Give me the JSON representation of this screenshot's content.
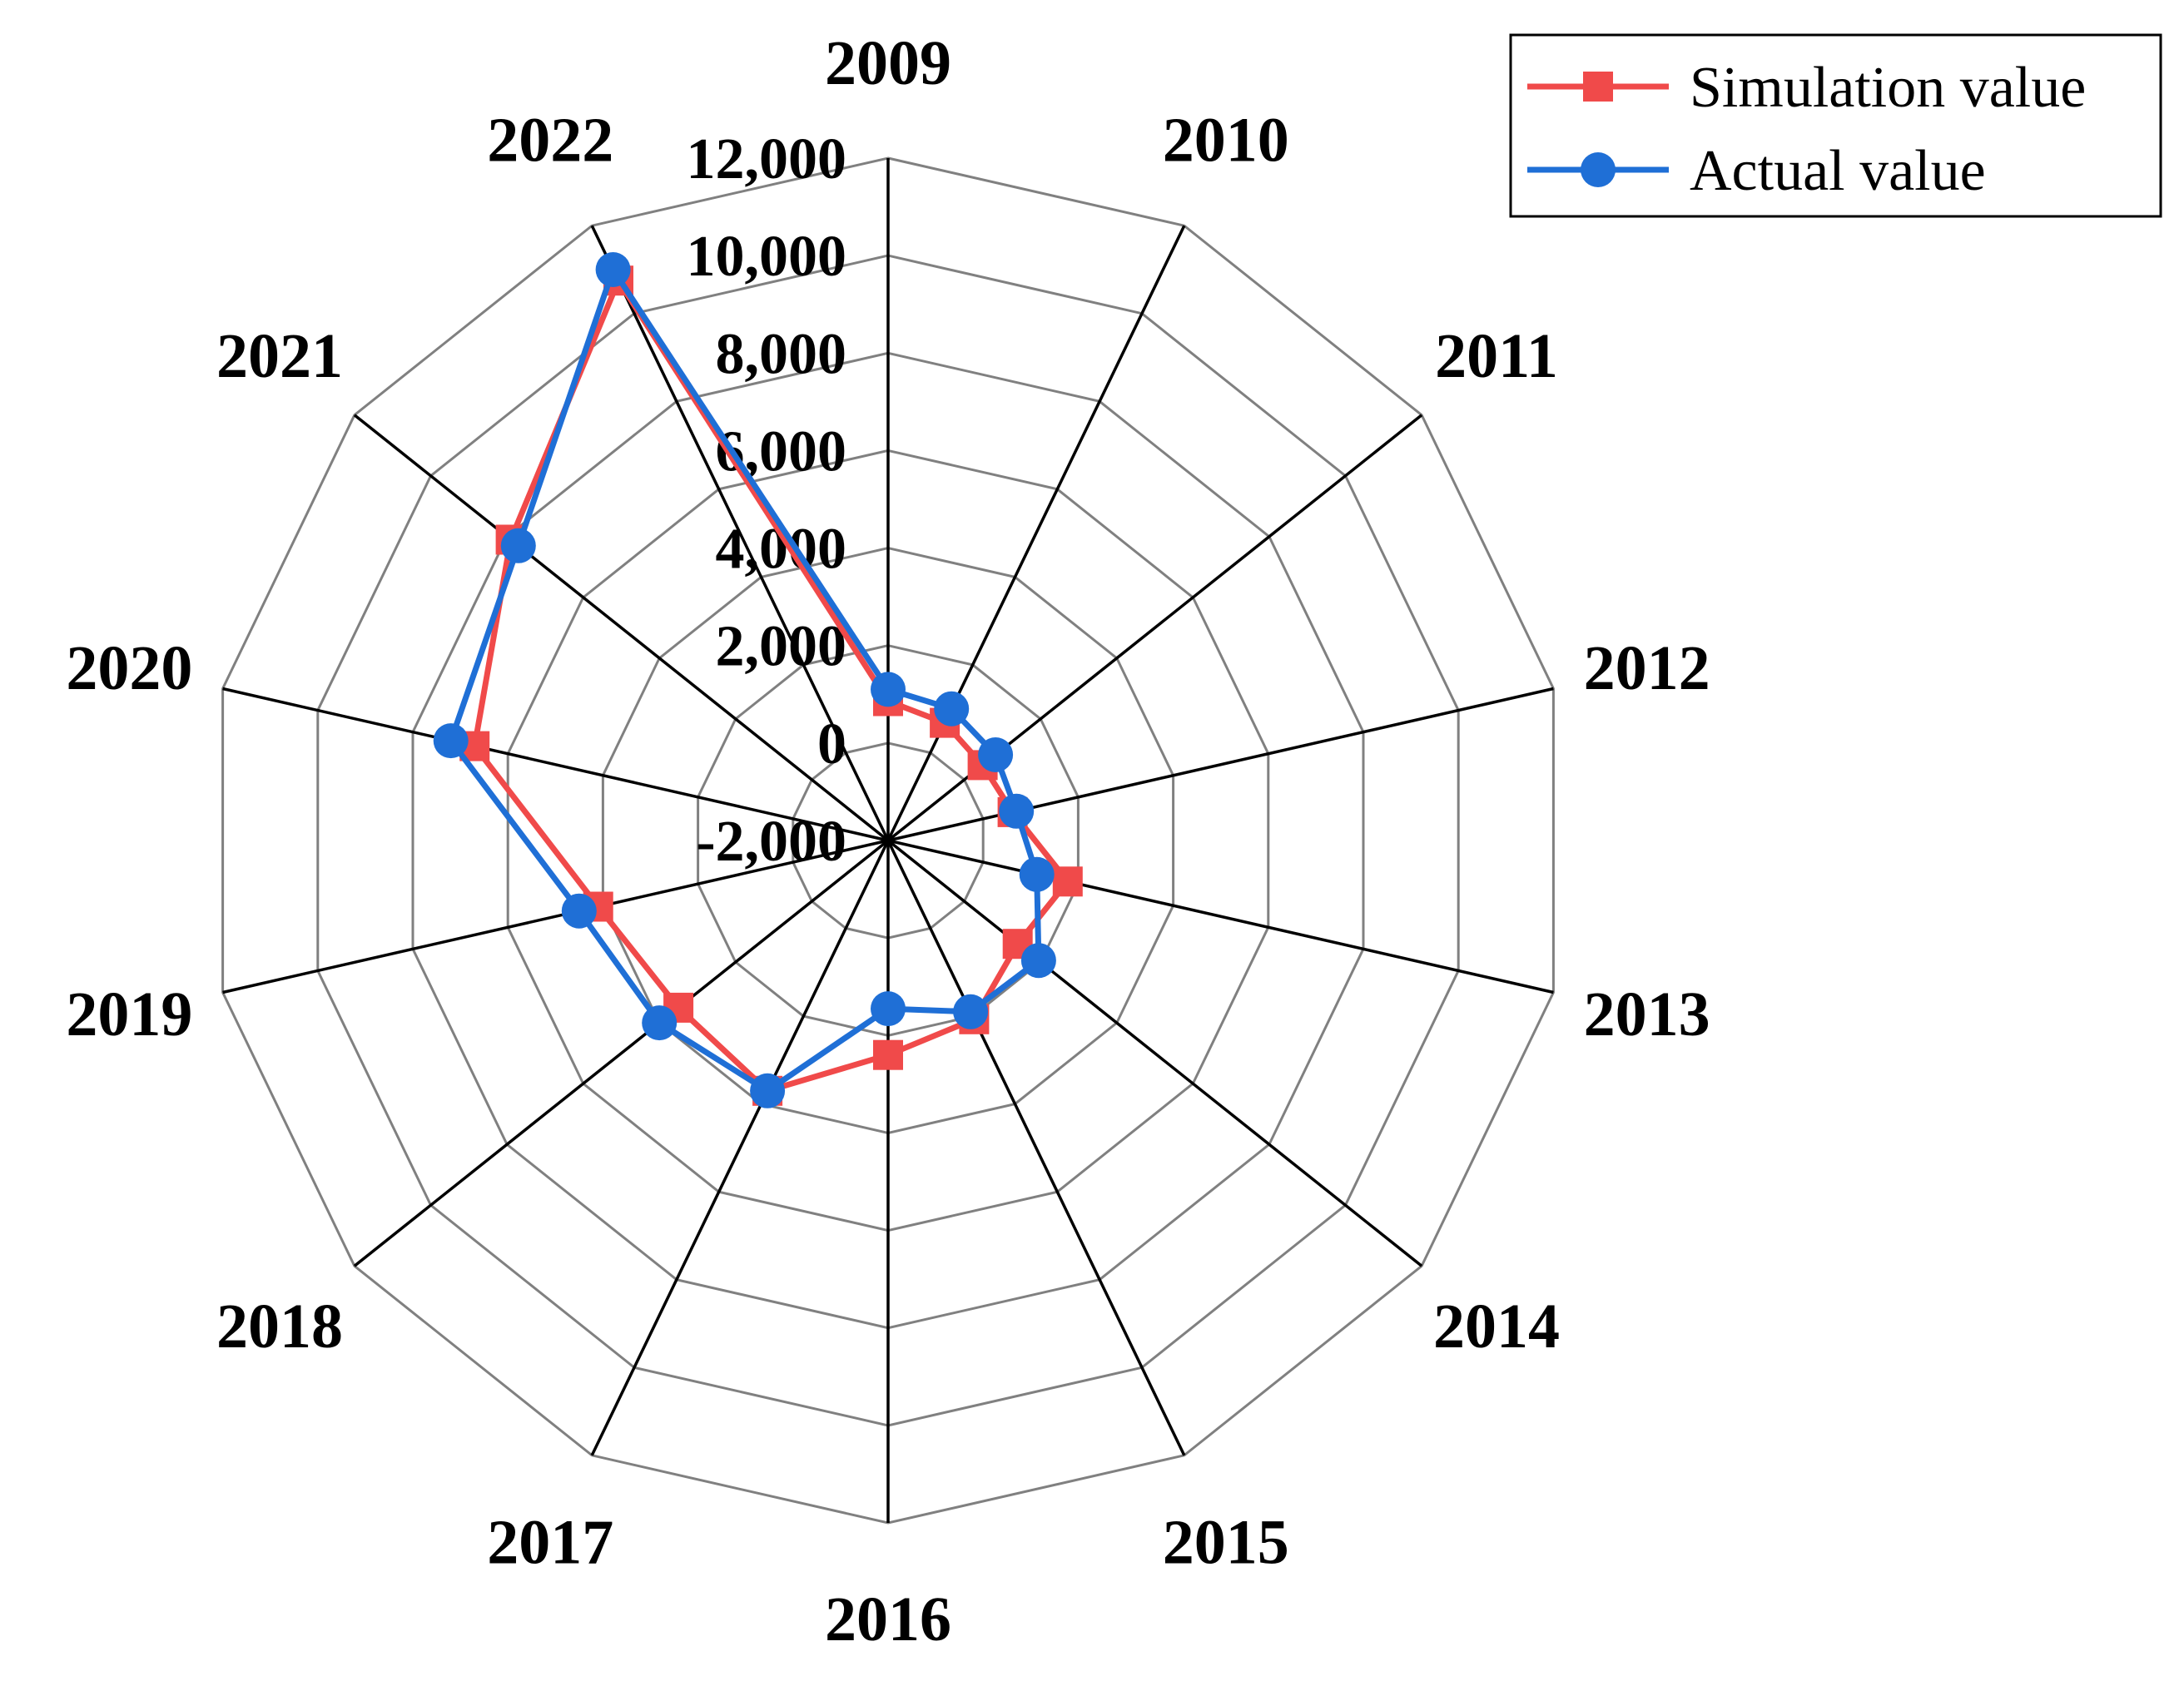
{
  "chart_data": {
    "type": "radar",
    "categories": [
      "2009",
      "2010",
      "2011",
      "2012",
      "2013",
      "2014",
      "2015",
      "2016",
      "2017",
      "2018",
      "2019",
      "2020",
      "2021",
      "2022"
    ],
    "series": [
      {
        "name": "Simulation value",
        "color": "#f04a4a",
        "marker": "square",
        "values": [
          860,
          680,
          480,
          620,
          1780,
          1400,
          2070,
          2400,
          3700,
          3500,
          4100,
          6700,
          7900,
          10750
        ]
      },
      {
        "name": "Actual value",
        "color": "#1f6fd6",
        "marker": "circle",
        "values": [
          1100,
          1000,
          820,
          700,
          1130,
          1950,
          1900,
          1450,
          3700,
          4000,
          4500,
          7200,
          7700,
          11000
        ]
      }
    ],
    "rlim": [
      -2000,
      12000
    ],
    "ticks": [
      -2000,
      0,
      2000,
      4000,
      6000,
      8000,
      10000,
      12000
    ],
    "tick_labels": [
      "-2,000",
      "0",
      "2,000",
      "4,000",
      "6,000",
      "8,000",
      "10,000",
      "12,000"
    ],
    "grid": true,
    "legend_position": "top-right"
  }
}
